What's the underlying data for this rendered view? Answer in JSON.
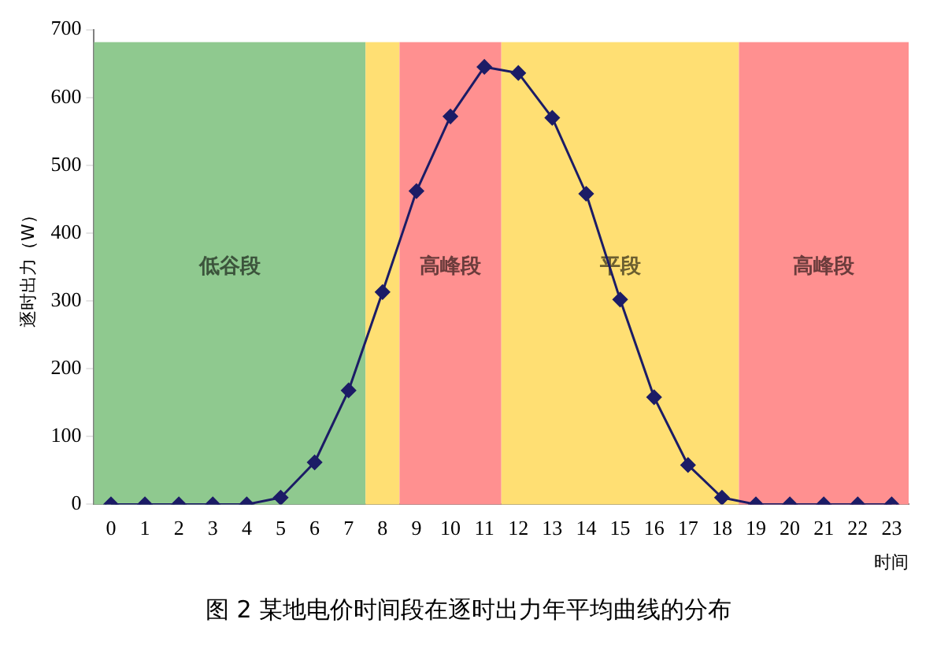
{
  "chart_data": {
    "type": "line",
    "x": [
      0,
      1,
      2,
      3,
      4,
      5,
      6,
      7,
      8,
      9,
      10,
      11,
      12,
      13,
      14,
      15,
      16,
      17,
      18,
      19,
      20,
      21,
      22,
      23
    ],
    "series": [
      {
        "color": "#1c1c66",
        "values": [
          0,
          0,
          0,
          0,
          0,
          10,
          62,
          168,
          313,
          462,
          572,
          645,
          636,
          570,
          458,
          302,
          158,
          58,
          10,
          0,
          0,
          0,
          0,
          0
        ]
      }
    ],
    "xlim": [
      -0.5,
      23.5
    ],
    "xticks": [
      0,
      1,
      2,
      3,
      4,
      5,
      6,
      7,
      8,
      9,
      10,
      11,
      12,
      13,
      14,
      15,
      16,
      17,
      18,
      19,
      20,
      21,
      22,
      23
    ],
    "ylim": [
      0,
      700
    ],
    "yticks": [
      0,
      100,
      200,
      300,
      400,
      500,
      600,
      700
    ],
    "xlabel": "时间",
    "ylabel": "逐时出力（W）",
    "marker": "diamond",
    "grid": false,
    "legend": false,
    "bands": [
      {
        "axis": "x",
        "from": -0.5,
        "to": 7.5,
        "label": "低谷段",
        "color": "#8fc98f"
      },
      {
        "axis": "x",
        "from": 7.5,
        "to": 8.5,
        "label": null,
        "color": "#ffdf73"
      },
      {
        "axis": "x",
        "from": 8.5,
        "to": 11.5,
        "label": "高峰段",
        "color": "#ff9090"
      },
      {
        "axis": "x",
        "from": 11.5,
        "to": 18.5,
        "label": "平段",
        "color": "#ffdf73"
      },
      {
        "axis": "x",
        "from": 18.5,
        "to": 23.5,
        "label": "高峰段",
        "color": "#ff9090"
      }
    ],
    "annotations": [
      "图 2  某地电价时间段在逐时出力年平均曲线的分布"
    ]
  }
}
